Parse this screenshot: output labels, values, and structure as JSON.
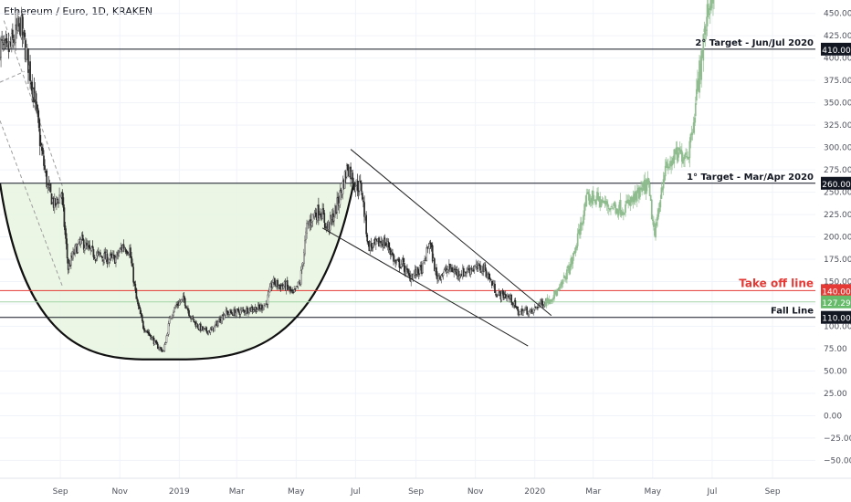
{
  "header": {
    "pair_title": "Ethereum / Euro, 1D, KRAKEN"
  },
  "chart_data": {
    "type": "candlestick",
    "title": "Ethereum / Euro, 1D, KRAKEN",
    "y_axis": {
      "range": [
        -70,
        465
      ],
      "ticks": [
        450,
        425,
        400,
        375,
        350,
        325,
        300,
        275,
        250,
        225,
        200,
        175,
        150,
        125,
        100,
        75,
        50,
        25,
        0,
        -25,
        -50
      ],
      "tick_labels": [
        "450.00",
        "425.00",
        "400.00",
        "375.00",
        "350.00",
        "325.00",
        "300.00",
        "275.00",
        "250.00",
        "225.00",
        "200.00",
        "175.00",
        "150.00",
        "125.00",
        "100.00",
        "75.00",
        "50.00",
        "25.00",
        "0.00",
        "−25.00",
        "−50.00"
      ]
    },
    "x_axis": {
      "range": [
        "2018-07-01",
        "2020-10-15"
      ],
      "ticks": [
        {
          "date": "2018-09-01",
          "label": "Sep"
        },
        {
          "date": "2018-11-01",
          "label": "Nov"
        },
        {
          "date": "2019-01-01",
          "label": "2019"
        },
        {
          "date": "2019-03-01",
          "label": "Mar"
        },
        {
          "date": "2019-05-01",
          "label": "May"
        },
        {
          "date": "2019-07-01",
          "label": "Jul"
        },
        {
          "date": "2019-09-01",
          "label": "Sep"
        },
        {
          "date": "2019-11-01",
          "label": "Nov"
        },
        {
          "date": "2020-01-01",
          "label": "2020"
        },
        {
          "date": "2020-03-01",
          "label": "Mar"
        },
        {
          "date": "2020-05-01",
          "label": "May"
        },
        {
          "date": "2020-07-01",
          "label": "Jul"
        },
        {
          "date": "2020-09-01",
          "label": "Sep"
        }
      ]
    },
    "grid": true,
    "colors": {
      "up": "#26a69a",
      "down": "#ef5350",
      "candle": "#333333",
      "projection": "#8fbc8f",
      "take_off": "#e53935",
      "cup_fill": "#e8f5e0",
      "line": "#131722"
    },
    "price_path": [
      [
        "2018-07-01",
        415
      ],
      [
        "2018-07-08",
        405
      ],
      [
        "2018-07-15",
        420
      ],
      [
        "2018-07-22",
        438
      ],
      [
        "2018-07-29",
        400
      ],
      [
        "2018-08-05",
        360
      ],
      [
        "2018-08-12",
        300
      ],
      [
        "2018-08-19",
        255
      ],
      [
        "2018-08-26",
        235
      ],
      [
        "2018-09-02",
        250
      ],
      [
        "2018-09-09",
        165
      ],
      [
        "2018-09-16",
        185
      ],
      [
        "2018-09-23",
        195
      ],
      [
        "2018-09-30",
        185
      ],
      [
        "2018-10-07",
        180
      ],
      [
        "2018-10-14",
        178
      ],
      [
        "2018-10-21",
        175
      ],
      [
        "2018-10-28",
        176
      ],
      [
        "2018-11-04",
        190
      ],
      [
        "2018-11-11",
        185
      ],
      [
        "2018-11-18",
        130
      ],
      [
        "2018-11-25",
        100
      ],
      [
        "2018-12-02",
        90
      ],
      [
        "2018-12-09",
        78
      ],
      [
        "2018-12-16",
        72
      ],
      [
        "2018-12-23",
        112
      ],
      [
        "2018-12-30",
        125
      ],
      [
        "2019-01-06",
        130
      ],
      [
        "2019-01-13",
        110
      ],
      [
        "2019-01-20",
        100
      ],
      [
        "2019-01-27",
        95
      ],
      [
        "2019-02-03",
        95
      ],
      [
        "2019-02-10",
        105
      ],
      [
        "2019-02-17",
        115
      ],
      [
        "2019-02-24",
        115
      ],
      [
        "2019-03-03",
        116
      ],
      [
        "2019-03-10",
        118
      ],
      [
        "2019-03-17",
        120
      ],
      [
        "2019-03-24",
        120
      ],
      [
        "2019-03-31",
        125
      ],
      [
        "2019-04-07",
        150
      ],
      [
        "2019-04-14",
        145
      ],
      [
        "2019-04-21",
        145
      ],
      [
        "2019-04-28",
        135
      ],
      [
        "2019-05-05",
        150
      ],
      [
        "2019-05-12",
        210
      ],
      [
        "2019-05-19",
        225
      ],
      [
        "2019-05-26",
        230
      ],
      [
        "2019-06-02",
        210
      ],
      [
        "2019-06-09",
        225
      ],
      [
        "2019-06-16",
        250
      ],
      [
        "2019-06-23",
        280
      ],
      [
        "2019-06-30",
        260
      ],
      [
        "2019-07-07",
        255
      ],
      [
        "2019-07-14",
        190
      ],
      [
        "2019-07-21",
        190
      ],
      [
        "2019-07-28",
        195
      ],
      [
        "2019-08-04",
        190
      ],
      [
        "2019-08-11",
        170
      ],
      [
        "2019-08-18",
        170
      ],
      [
        "2019-08-25",
        155
      ],
      [
        "2019-09-01",
        160
      ],
      [
        "2019-09-08",
        165
      ],
      [
        "2019-09-15",
        195
      ],
      [
        "2019-09-22",
        155
      ],
      [
        "2019-09-29",
        160
      ],
      [
        "2019-10-06",
        165
      ],
      [
        "2019-10-13",
        160
      ],
      [
        "2019-10-20",
        160
      ],
      [
        "2019-10-27",
        165
      ],
      [
        "2019-11-03",
        165
      ],
      [
        "2019-11-10",
        165
      ],
      [
        "2019-11-17",
        150
      ],
      [
        "2019-11-24",
        135
      ],
      [
        "2019-12-01",
        135
      ],
      [
        "2019-12-08",
        130
      ],
      [
        "2019-12-15",
        115
      ],
      [
        "2019-12-22",
        118
      ],
      [
        "2019-12-29",
        115
      ],
      [
        "2020-01-05",
        125
      ],
      [
        "2020-01-12",
        127.29
      ]
    ],
    "projection_path": [
      [
        "2020-01-12",
        127.29
      ],
      [
        "2020-01-26",
        140
      ],
      [
        "2020-02-09",
        175
      ],
      [
        "2020-02-23",
        240
      ],
      [
        "2020-03-01",
        245
      ],
      [
        "2020-03-15",
        235
      ],
      [
        "2020-04-01",
        232
      ],
      [
        "2020-04-15",
        245
      ],
      [
        "2020-04-26",
        260
      ],
      [
        "2020-05-03",
        200
      ],
      [
        "2020-05-12",
        270
      ],
      [
        "2020-05-24",
        290
      ],
      [
        "2020-06-07",
        295
      ],
      [
        "2020-06-14",
        350
      ],
      [
        "2020-06-21",
        410
      ],
      [
        "2020-06-28",
        460
      ],
      [
        "2020-07-03",
        480
      ]
    ],
    "levels": [
      {
        "value": 410,
        "label": "2° Target - Jun/Jul 2020",
        "badge": "410.00",
        "style": "target"
      },
      {
        "value": 260,
        "label": "1° Target - Mar/Apr 2020",
        "badge": "260.00",
        "style": "target"
      },
      {
        "value": 140,
        "label": "Take off line",
        "badge": "140.00",
        "style": "takeoff"
      },
      {
        "value": 110,
        "label": "Fall Line",
        "badge": "110.00",
        "style": "fall"
      }
    ],
    "current_price": {
      "value": 127.29,
      "badge": "127.29"
    },
    "cup": {
      "left": [
        "2018-07-01",
        260
      ],
      "bottom": [
        "2018-12-15",
        63
      ],
      "right": [
        "2019-06-29",
        260
      ]
    },
    "channel": {
      "upper": [
        [
          "2019-06-26",
          298
        ],
        [
          "2020-01-18",
          112
        ]
      ],
      "lower": [
        [
          "2019-05-28",
          210
        ],
        [
          "2019-12-25",
          78
        ]
      ]
    },
    "dashed_lines": [
      [
        [
          "2018-07-05",
          442
        ],
        [
          "2018-09-03",
          257
        ]
      ],
      [
        [
          "2018-07-01",
          330
        ],
        [
          "2018-09-03",
          145
        ]
      ],
      [
        [
          "2018-07-01",
          373
        ],
        [
          "2018-07-26",
          385
        ]
      ]
    ]
  }
}
